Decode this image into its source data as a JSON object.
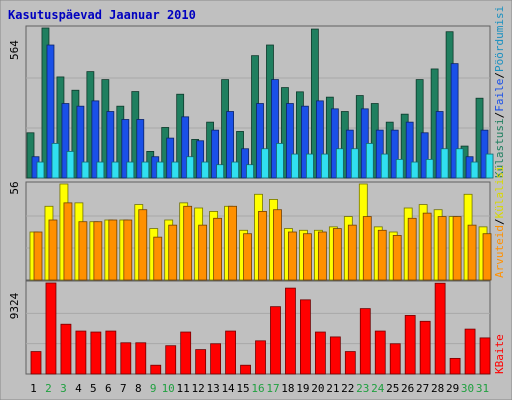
{
  "chart_data": [
    {
      "type": "bar",
      "title": "Kasutuspäevad Jaanuar 2010",
      "categories": [
        "1",
        "2",
        "3",
        "4",
        "5",
        "6",
        "7",
        "8",
        "9",
        "10",
        "11",
        "12",
        "13",
        "14",
        "15",
        "16",
        "17",
        "18",
        "19",
        "20",
        "21",
        "22",
        "23",
        "24",
        "25",
        "26",
        "27",
        "28",
        "29",
        "30",
        "31"
      ],
      "weekend_categories": [
        "2",
        "3",
        "9",
        "10",
        "16",
        "17",
        "23",
        "24",
        "30",
        "31"
      ],
      "ylim": [
        0,
        564
      ],
      "y_tick_label": "564",
      "grid": true,
      "series": [
        {
          "name": "Külastusi",
          "color": "#1f7f5f",
          "values": [
            170,
            564,
            380,
            330,
            400,
            370,
            270,
            325,
            100,
            190,
            315,
            145,
            210,
            370,
            175,
            460,
            500,
            340,
            324,
            560,
            304,
            250,
            310,
            280,
            210,
            240,
            370,
            410,
            550,
            120,
            300
          ]
        },
        {
          "name": "Faile",
          "color": "#1a50e8",
          "values": [
            80,
            500,
            280,
            270,
            290,
            250,
            220,
            220,
            80,
            150,
            230,
            140,
            180,
            250,
            110,
            280,
            370,
            280,
            270,
            290,
            260,
            180,
            260,
            180,
            180,
            210,
            170,
            250,
            430,
            80,
            180
          ]
        },
        {
          "name": "Pöördumisi",
          "color": "#30e0f0",
          "values": [
            60,
            130,
            100,
            60,
            60,
            60,
            60,
            60,
            60,
            60,
            80,
            60,
            50,
            60,
            50,
            110,
            130,
            90,
            90,
            90,
            110,
            110,
            130,
            90,
            70,
            60,
            70,
            110,
            110,
            60,
            90
          ]
        }
      ]
    },
    {
      "type": "bar",
      "categories": [
        "1",
        "2",
        "3",
        "4",
        "5",
        "6",
        "7",
        "8",
        "9",
        "10",
        "11",
        "12",
        "13",
        "14",
        "15",
        "16",
        "17",
        "18",
        "19",
        "20",
        "21",
        "22",
        "23",
        "24",
        "25",
        "26",
        "27",
        "28",
        "29",
        "30",
        "31"
      ],
      "ylim": [
        0,
        56
      ],
      "y_tick_label": "56",
      "grid": true,
      "series": [
        {
          "name": "Külalisi",
          "color": "#ffff00",
          "values": [
            28,
            43,
            56,
            45,
            34,
            35,
            35,
            44,
            30,
            35,
            45,
            42,
            40,
            43,
            29,
            50,
            47,
            30,
            29,
            29,
            31,
            37,
            56,
            31,
            28,
            42,
            44,
            41,
            37,
            50,
            31
          ]
        },
        {
          "name": "Arvuteid",
          "color": "#ff9000",
          "values": [
            28,
            35,
            45,
            34,
            34,
            35,
            35,
            41,
            25,
            32,
            43,
            32,
            36,
            43,
            27,
            40,
            41,
            28,
            27,
            28,
            30,
            32,
            37,
            29,
            26,
            36,
            39,
            37,
            37,
            32,
            27
          ]
        }
      ]
    },
    {
      "type": "bar",
      "categories": [
        "1",
        "2",
        "3",
        "4",
        "5",
        "6",
        "7",
        "8",
        "9",
        "10",
        "11",
        "12",
        "13",
        "14",
        "15",
        "16",
        "17",
        "18",
        "19",
        "20",
        "21",
        "22",
        "23",
        "24",
        "25",
        "26",
        "27",
        "28",
        "29",
        "30",
        "31"
      ],
      "ylim": [
        0,
        9324
      ],
      "y_tick_label": "9324",
      "grid": true,
      "series": [
        {
          "name": "KBaite",
          "color": "#ff0000",
          "values": [
            2300,
            9324,
            5100,
            4400,
            4300,
            4400,
            3200,
            3200,
            900,
            2900,
            4300,
            2500,
            3100,
            4400,
            900,
            3400,
            6900,
            8800,
            7600,
            4300,
            3800,
            2300,
            6700,
            4400,
            3100,
            6000,
            5400,
            9300,
            1600,
            4600,
            3700
          ]
        }
      ]
    }
  ],
  "legend_right_top": [
    {
      "text": "Külastusi",
      "color": "#1f7f5f"
    },
    {
      "text": "/",
      "color": "#000000"
    },
    {
      "text": "Faile",
      "color": "#1a50e8"
    },
    {
      "text": "/",
      "color": "#000000"
    },
    {
      "text": "Pöördumisi",
      "color": "#1a90c0"
    }
  ],
  "legend_right_middle": [
    {
      "text": "Arvuteid",
      "color": "#ff9000"
    },
    {
      "text": "/",
      "color": "#000000"
    },
    {
      "text": "Külalisi",
      "color": "#d8d800"
    }
  ],
  "legend_right_bottom": [
    {
      "text": "KBaite",
      "color": "#ff0000"
    }
  ],
  "colors": {
    "background": "#c0c0c0",
    "title": "#0000c0",
    "weekday_label": "#000000",
    "weekend_label": "#20a040"
  }
}
